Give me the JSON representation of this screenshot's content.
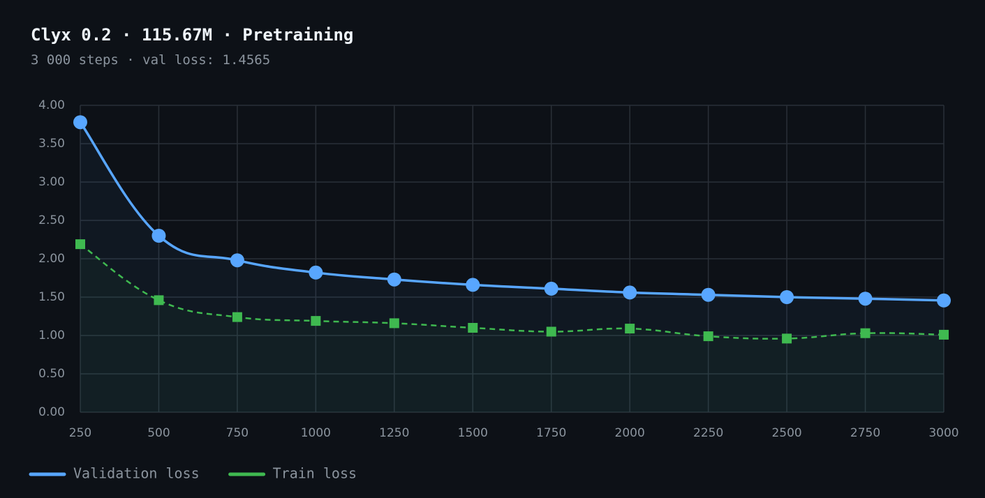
{
  "chart_data": {
    "type": "line",
    "title": "Clyx 0.2 · 115.67M · Pretraining",
    "subtitle": "3 000 steps · val loss: 1.4565",
    "x": [
      250,
      500,
      750,
      1000,
      1250,
      1500,
      1750,
      2000,
      2250,
      2500,
      2750,
      3000
    ],
    "series": [
      {
        "name": "Validation loss",
        "color": "#58a6ff",
        "marker": "circle",
        "dashed": false,
        "values": [
          3.78,
          2.3,
          1.98,
          1.82,
          1.73,
          1.66,
          1.61,
          1.56,
          1.53,
          1.5,
          1.48,
          1.4565
        ]
      },
      {
        "name": "Train loss",
        "color": "#3fb950",
        "marker": "square",
        "dashed": true,
        "values": [
          2.19,
          1.46,
          1.24,
          1.19,
          1.16,
          1.1,
          1.05,
          1.09,
          0.99,
          0.96,
          1.03,
          1.01
        ]
      }
    ],
    "xlim": [
      250,
      3000
    ],
    "xticks": [
      250,
      500,
      750,
      1000,
      1250,
      1500,
      1750,
      2000,
      2250,
      2500,
      2750,
      3000
    ],
    "ylim": [
      0,
      4
    ],
    "yticks": [
      {
        "value": 0,
        "label": "0.00"
      },
      {
        "value": 0.5,
        "label": "0.50"
      },
      {
        "value": 1,
        "label": "1.00"
      },
      {
        "value": 1.5,
        "label": "1.50"
      },
      {
        "value": 2,
        "label": "2.00"
      },
      {
        "value": 2.5,
        "label": "2.50"
      },
      {
        "value": 3,
        "label": "3.00"
      },
      {
        "value": 3.5,
        "label": "3.50"
      },
      {
        "value": 4,
        "label": "4.00"
      }
    ],
    "grid": true,
    "legend": "bottom-left"
  }
}
